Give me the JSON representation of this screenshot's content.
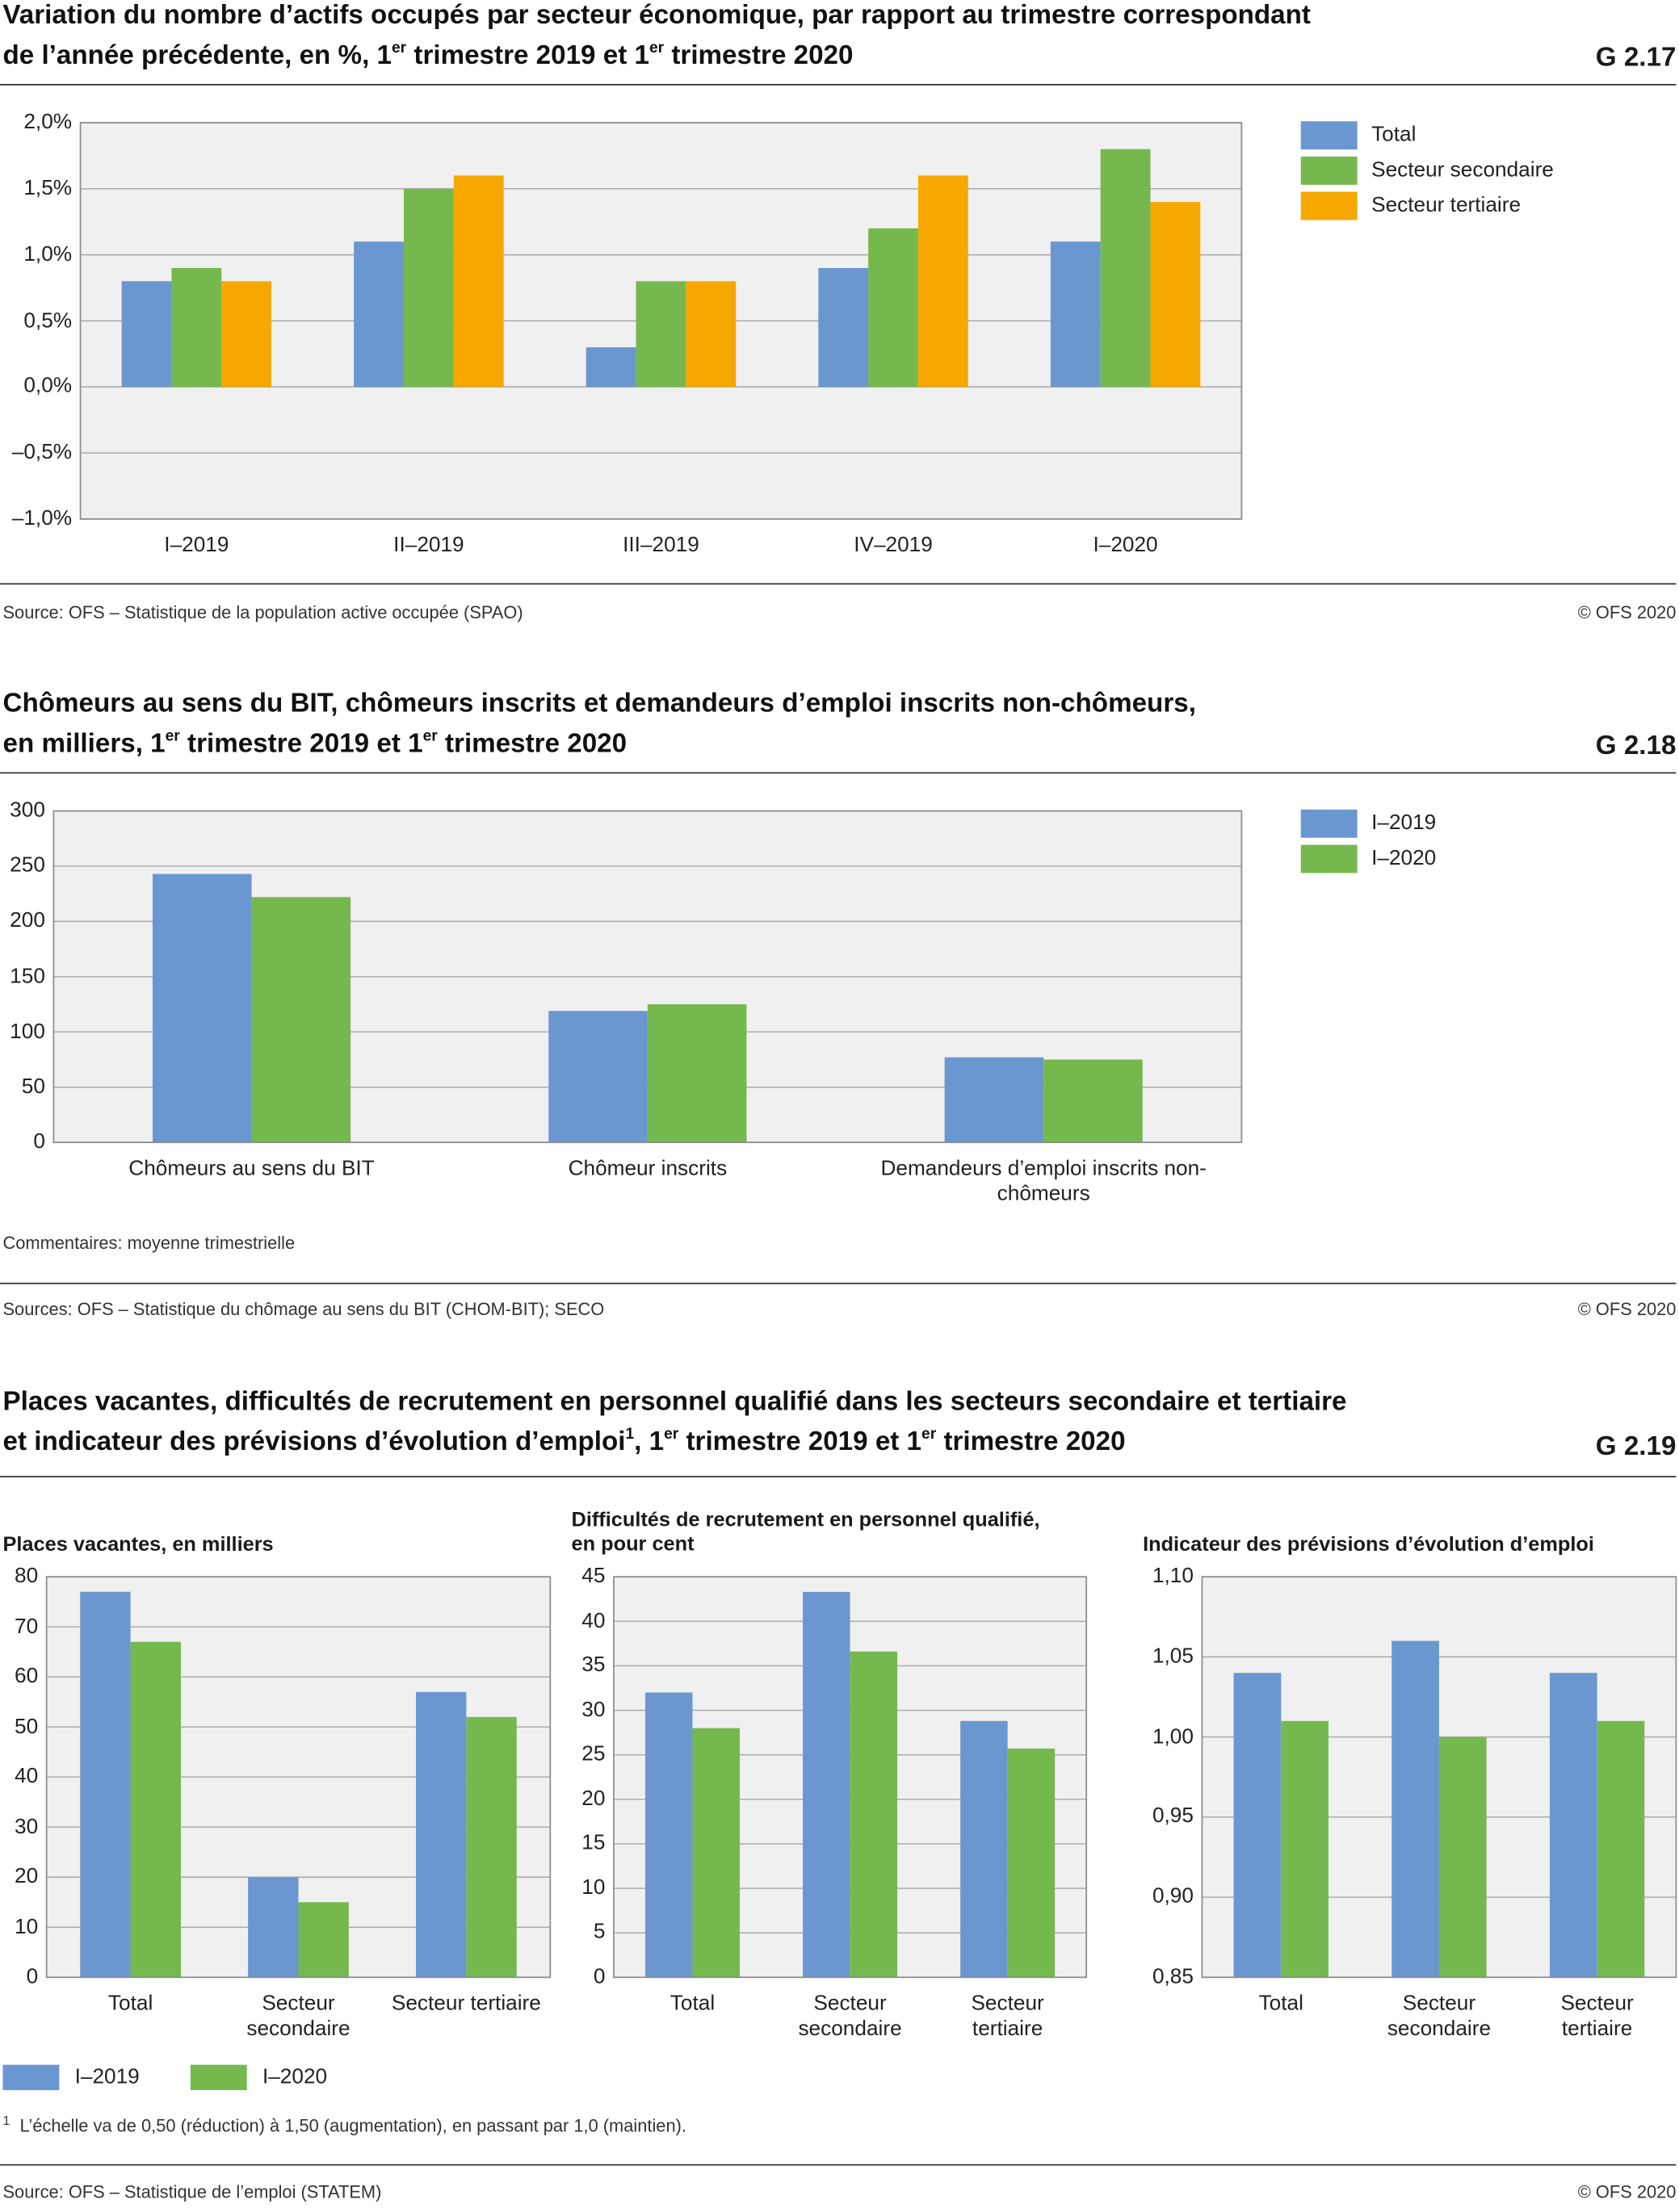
{
  "chart_data": [
    {
      "type": "bar",
      "code": "G 2.17",
      "title": [
        [
          "Variation du nombre d’actifs occupés par secteur économique, par rapport au trimestre correspondant"
        ],
        [
          "de l’année précédente, en %, 1",
          "er",
          " trimestre 2019 et 1",
          "er",
          " trimestre 2020"
        ]
      ],
      "categories": [
        "I–2019",
        "II–2019",
        "III–2019",
        "IV–2019",
        "I–2020"
      ],
      "series": [
        {
          "name": "Total",
          "color": "#6b97d1",
          "values": [
            0.8,
            1.1,
            0.3,
            0.9,
            1.1
          ]
        },
        {
          "name": "Secteur secondaire",
          "color": "#75b94e",
          "values": [
            0.9,
            1.5,
            0.8,
            1.2,
            1.8
          ]
        },
        {
          "name": "Secteur tertiaire",
          "color": "#f6a800",
          "values": [
            0.8,
            1.6,
            0.8,
            1.6,
            1.4
          ]
        }
      ],
      "ylim": [
        -1,
        2
      ],
      "yticks": [
        {
          "value": -1,
          "label": "–1,0%"
        },
        {
          "value": -0.5,
          "label": "–0,5%"
        },
        {
          "value": 0,
          "label": "0,0%"
        },
        {
          "value": 0.5,
          "label": "0,5%"
        },
        {
          "value": 1,
          "label": "1,0%"
        },
        {
          "value": 1.5,
          "label": "1,5%"
        },
        {
          "value": 2,
          "label": "2,0%"
        }
      ],
      "grid": true,
      "legend": "right",
      "source": "Source: OFS – Statistique de la population active occupée (SPAO)",
      "copyright": "© OFS 2020"
    },
    {
      "type": "bar",
      "code": "G 2.18",
      "title": [
        [
          "Chômeurs au sens du BIT, chômeurs inscrits et demandeurs d’emploi inscrits non-chômeurs,"
        ],
        [
          "en milliers, 1",
          "er",
          " trimestre 2019 et 1",
          "er",
          " trimestre 2020"
        ]
      ],
      "categories": [
        "Chômeurs au sens du BIT",
        "Chômeur inscrits",
        "Demandeurs d’emploi inscrits non-chômeurs"
      ],
      "series": [
        {
          "name": "I–2019",
          "color": "#6b97d1",
          "values": [
            243,
            119,
            77
          ]
        },
        {
          "name": "I–2020",
          "color": "#75b94e",
          "values": [
            222,
            125,
            75
          ]
        }
      ],
      "ylim": [
        0,
        300
      ],
      "yticks": [
        0,
        50,
        100,
        150,
        200,
        250,
        300
      ],
      "grid": true,
      "legend": "right",
      "note": "Commentaires: moyenne trimestrielle",
      "source": "Sources: OFS – Statistique du chômage au sens du BIT (CHOM-BIT); SECO",
      "copyright": "© OFS 2020"
    },
    {
      "type": "bar",
      "code": "G 2.19",
      "title": [
        [
          "Places vacantes, difficultés de recrutement en personnel qualifié dans les secteurs secondaire et tertiaire"
        ],
        [
          "et indicateur des prévisions d’évolution d’emploi",
          "1",
          ", 1",
          "er",
          " trimestre 2019 et 1",
          "er",
          " trimestre 2020"
        ]
      ],
      "series": [
        {
          "name": "I–2019",
          "color": "#6b97d1"
        },
        {
          "name": "I–2020",
          "color": "#75b94e"
        }
      ],
      "legend": "bottom",
      "panels": [
        {
          "title": "Places vacantes, en milliers",
          "categories": [
            "Total",
            "Secteur secondaire",
            "Secteur tertiaire"
          ],
          "values": [
            [
              77,
              20,
              57
            ],
            [
              67,
              15,
              52
            ]
          ],
          "ylim": [
            0,
            80
          ],
          "yticks": [
            0,
            10,
            20,
            30,
            40,
            50,
            60,
            70,
            80
          ]
        },
        {
          "title": "Difficultés de recrutement en personnel qualifié, en pour cent",
          "categories": [
            "Total",
            "Secteur secondaire",
            "Secteur tertiaire"
          ],
          "values": [
            [
              32,
              43.3,
              28.8
            ],
            [
              28,
              36.6,
              25.7
            ]
          ],
          "ylim": [
            0,
            45
          ],
          "yticks": [
            0,
            5,
            10,
            15,
            20,
            25,
            30,
            35,
            40,
            45
          ]
        },
        {
          "title": "Indicateur des prévisions d’évolution d’emploi",
          "categories": [
            "Total",
            "Secteur secondaire",
            "Secteur tertiaire"
          ],
          "values": [
            [
              1.04,
              1.06,
              1.04
            ],
            [
              1.01,
              1.0,
              1.01
            ]
          ],
          "ylim": [
            0.85,
            1.1
          ],
          "yticks": [
            {
              "value": 0.85,
              "label": "0,85"
            },
            {
              "value": 0.9,
              "label": "0,90"
            },
            {
              "value": 0.95,
              "label": "0,95"
            },
            {
              "value": 1,
              "label": "1,00"
            },
            {
              "value": 1.05,
              "label": "1,05"
            },
            {
              "value": 1.1,
              "label": "1,10"
            }
          ]
        }
      ],
      "grid": true,
      "footnote": {
        "mark": "1",
        "text": "L’échelle va de 0,50 (réduction) à 1,50 (augmentation), en passant par 1,0 (maintien)."
      },
      "source": "Source: OFS – Statistique de l’emploi (STATEM)",
      "copyright": "© OFS 2020"
    }
  ]
}
